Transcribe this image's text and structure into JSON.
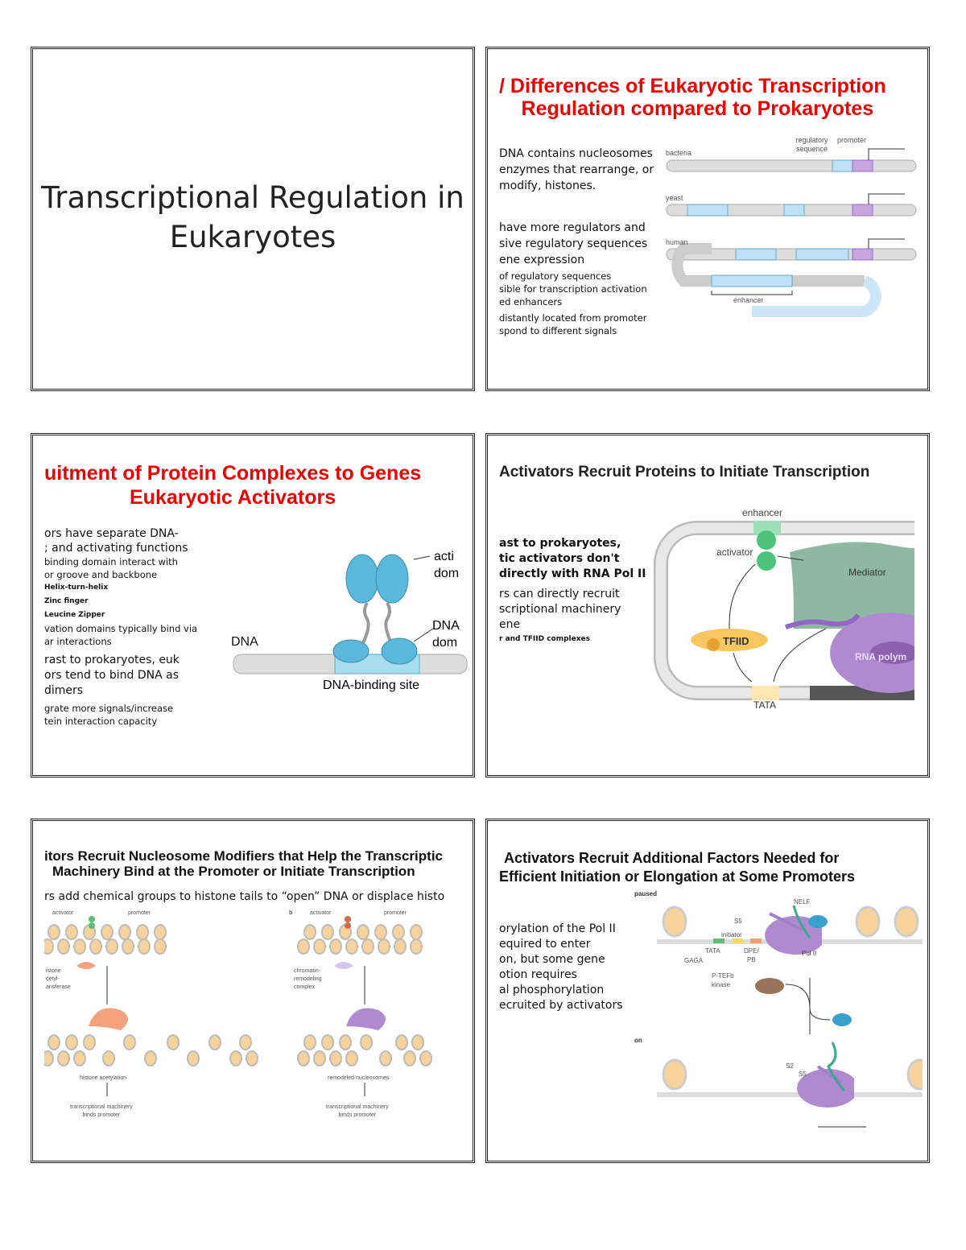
{
  "slides": [
    {
      "title_line1": "Transcriptional Regulation in",
      "title_line2": "Eukaryotes"
    },
    {
      "title_line1": "/ Differences of Eukaryotic Transcription",
      "title_line2": "Regulation compared to Prokaryotes",
      "bullets": [
        "DNA contains nucleosomes",
        "enzymes that rearrange, or",
        "modify, histones.",
        "have more regulators and",
        "sive regulatory sequences",
        "ene expression",
        "of regulatory sequences",
        "sible for transcription activation",
        "ed enhancers",
        "distantly located from promoter",
        "spond to different signals"
      ],
      "figure": {
        "bacteria": "bacteria",
        "yeast": "yeast",
        "human": "human",
        "regulatory_sequence": "regulatory sequence",
        "promoter": "promoter",
        "enhancer": "enhancer"
      }
    },
    {
      "title_line1": "uitment of Protein Complexes to Genes",
      "title_line2": "Eukaryotic Activators",
      "bullets": [
        "ors have separate DNA-",
        "; and activating functions",
        "binding domain interact with",
        "or groove and backbone",
        "Helix-turn-helix",
        "Zinc finger",
        "Leucine Zipper",
        "vation domains typically bind via",
        "ar interactions",
        "rast to prokaryotes, euk",
        "ors tend to bind DNA as",
        "dimers",
        "grate more signals/increase",
        "tein interaction capacity"
      ],
      "figure": {
        "dna": "DNA",
        "activation_domain_1": "acti",
        "activation_domain_2": "dom",
        "dna_domain_1": "DNA",
        "dna_domain_2": "dom",
        "binding_site": "DNA-binding site"
      }
    },
    {
      "title": "Activators Recruit Proteins to Initiate Transcription",
      "bullets": [
        "ast to prokaryotes,",
        "tic activators don't",
        "directly with RNA Pol II",
        "rs can directly recruit",
        "scriptional machinery",
        "ene",
        "r and TFIID complexes"
      ],
      "figure": {
        "enhancer": "enhancer",
        "activator": "activator",
        "mediator": "Mediator",
        "tfiid": "TFIID",
        "rna_pol": "RNA polym",
        "tata": "TATA"
      }
    },
    {
      "title_line1": "itors Recruit Nucleosome Modifiers that Help the Transcriptic",
      "title_line2": "Machinery Bind at the Promoter or Initiate Transcription",
      "subtitle": "rs add chemical groups to histone tails to “open” DNA or displace histo",
      "figure": {
        "activator": "activator",
        "promoter": "promoter",
        "b": "b",
        "hat_1": "istone",
        "hat_2": "cetyl-",
        "hat_3": "ansferase",
        "crc_1": "chromatin-",
        "crc_2": "remodeling",
        "crc_3": "complex",
        "acetylation": "histone acetylation",
        "remodeled": "remodeled nucleosomes",
        "binds_1": "transcriptional machinery",
        "binds_2": "binds promoter"
      }
    },
    {
      "title_line1": "Activators Recruit Additional Factors Needed for",
      "title_line2": "Efficient Initiation or Elongation at Some Promoters",
      "bullets": [
        "orylation of the Pol II",
        "equired to enter",
        "on, but some gene",
        "otion requires",
        "al phosphorylation",
        "ecruited by activators"
      ],
      "figure": {
        "paused": "paused",
        "on": "on",
        "nelf": "NELF",
        "s5": "S5",
        "s2": "S2",
        "initiator": "initiator",
        "tata": "TATA",
        "gaga": "GAGA",
        "dpe": "DPE/",
        "pb": "PB",
        "pol2": "Pol II",
        "ptefb_1": "P-TEFb",
        "ptefb_2": "kinase"
      }
    }
  ]
}
